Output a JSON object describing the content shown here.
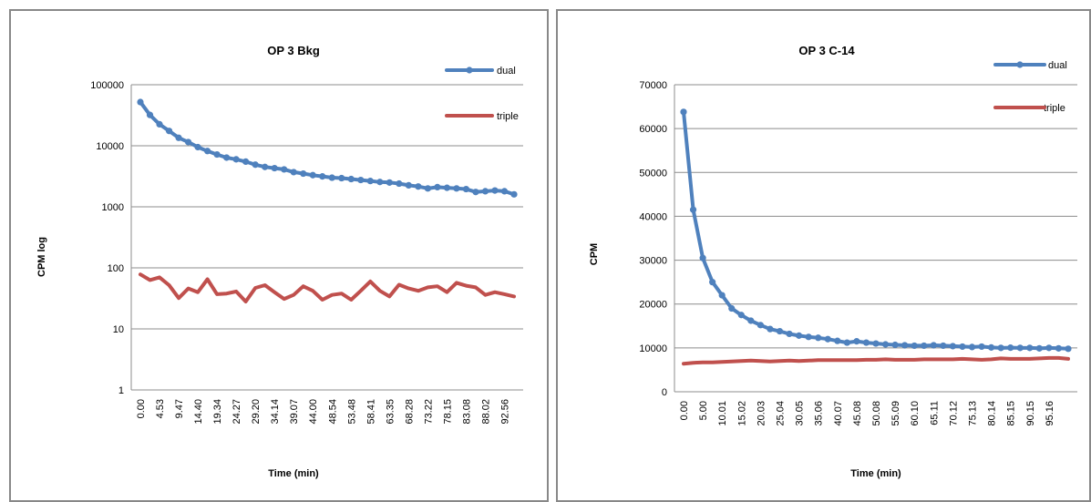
{
  "chart_data": [
    {
      "type": "line",
      "title": "OP 3 Bkg",
      "xlabel": "Time (min)",
      "ylabel": "CPM log",
      "yscale": "log",
      "ylim": [
        1,
        100000
      ],
      "yticks": [
        "1",
        "10",
        "100",
        "1000",
        "10000",
        "100000"
      ],
      "x_tick_labels": [
        "0.00",
        "4.53",
        "9.47",
        "14.40",
        "19.34",
        "24.27",
        "29.20",
        "34.14",
        "39.07",
        "44.00",
        "48.54",
        "53.48",
        "58.41",
        "63.35",
        "68.28",
        "73.22",
        "78.15",
        "83.08",
        "88.02",
        "92.56"
      ],
      "legend_position": "right",
      "series": [
        {
          "name": "dual",
          "color": "#4f81bd",
          "markers": true,
          "values": [
            52000,
            32000,
            22500,
            17500,
            13500,
            11500,
            9500,
            8200,
            7200,
            6400,
            6000,
            5500,
            4900,
            4500,
            4300,
            4100,
            3700,
            3500,
            3300,
            3150,
            3000,
            2950,
            2850,
            2750,
            2650,
            2550,
            2500,
            2400,
            2250,
            2150,
            2000,
            2100,
            2050,
            2000,
            1950,
            1750,
            1800,
            1850,
            1800,
            1600
          ]
        },
        {
          "name": "triple",
          "color": "#c0504d",
          "markers": false,
          "values": [
            78,
            63,
            70,
            52,
            32,
            46,
            40,
            65,
            37,
            38,
            41,
            28,
            47,
            52,
            40,
            31,
            36,
            50,
            42,
            30,
            36,
            38,
            30,
            42,
            60,
            42,
            34,
            53,
            46,
            42,
            48,
            50,
            40,
            57,
            51,
            48,
            36,
            40,
            37,
            34
          ]
        }
      ]
    },
    {
      "type": "line",
      "title": "OP 3 C-14",
      "xlabel": "Time (min)",
      "ylabel": "CPM",
      "ylim": [
        0,
        70000
      ],
      "yticks": [
        "0",
        "10000",
        "20000",
        "30000",
        "40000",
        "50000",
        "60000",
        "70000"
      ],
      "x_tick_labels": [
        "0.00",
        "5.00",
        "10.01",
        "15.02",
        "20.03",
        "25.04",
        "30.05",
        "35.06",
        "40.07",
        "45.08",
        "50.08",
        "55.09",
        "60.10",
        "65.11",
        "70.12",
        "75.13",
        "80.14",
        "85.15",
        "90.15",
        "95.16"
      ],
      "legend_position": "right",
      "series": [
        {
          "name": "dual",
          "color": "#4f81bd",
          "markers": true,
          "values": [
            63800,
            41500,
            30500,
            25000,
            22000,
            19000,
            17500,
            16200,
            15200,
            14300,
            13800,
            13200,
            12800,
            12500,
            12300,
            12000,
            11600,
            11200,
            11500,
            11200,
            11000,
            10800,
            10700,
            10600,
            10500,
            10500,
            10600,
            10500,
            10400,
            10300,
            10200,
            10300,
            10100,
            10000,
            10050,
            10000,
            10000,
            9900,
            10000,
            9900,
            9800
          ]
        },
        {
          "name": "triple",
          "color": "#c0504d",
          "markers": false,
          "values": [
            6400,
            6600,
            6700,
            6700,
            6800,
            6900,
            7000,
            7100,
            7000,
            6900,
            7000,
            7100,
            7000,
            7100,
            7200,
            7200,
            7200,
            7200,
            7200,
            7300,
            7300,
            7400,
            7300,
            7300,
            7300,
            7400,
            7400,
            7400,
            7400,
            7500,
            7400,
            7300,
            7400,
            7600,
            7500,
            7500,
            7500,
            7600,
            7700,
            7700,
            7500
          ]
        }
      ]
    }
  ]
}
